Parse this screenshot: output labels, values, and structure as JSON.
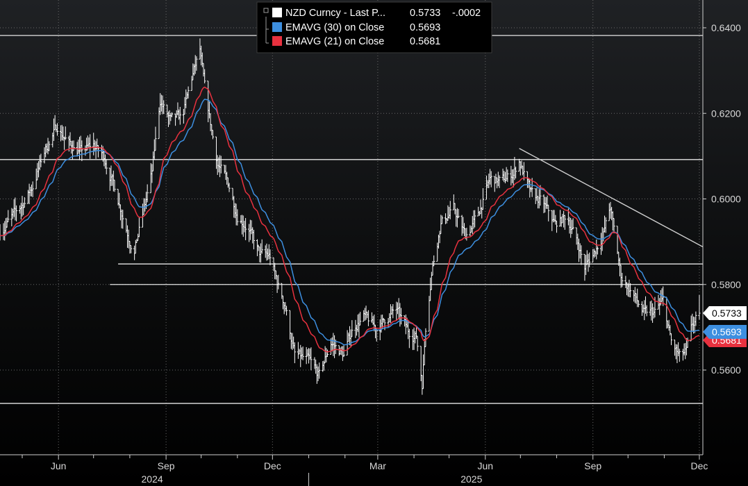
{
  "chart_data": {
    "type": "line",
    "instrument": "NZD Curncy",
    "ylim": [
      0.548,
      0.6408
    ],
    "y_ticks": [
      0.56,
      0.58,
      0.6,
      0.62,
      0.64
    ],
    "y_tick_labels": [
      "0.5600",
      "0.5800",
      "0.6000",
      "0.6200",
      "0.6400"
    ],
    "x_domain": [
      "2024-04-12",
      "2025-12-04"
    ],
    "x_month_ticks": [
      {
        "date": "2024-06-01",
        "label": "Jun"
      },
      {
        "date": "2024-09-01",
        "label": "Sep"
      },
      {
        "date": "2024-12-01",
        "label": "Dec"
      },
      {
        "date": "2025-03-01",
        "label": "Mar"
      },
      {
        "date": "2025-06-01",
        "label": "Jun"
      },
      {
        "date": "2025-09-01",
        "label": "Sep"
      },
      {
        "date": "2025-12-01",
        "label": "Dec"
      }
    ],
    "x_minor_ticks": [
      "2024-04-01",
      "2024-05-01",
      "2024-07-01",
      "2024-08-01",
      "2024-10-01",
      "2024-11-01",
      "2025-01-01",
      "2025-02-01",
      "2025-04-01",
      "2025-05-01",
      "2025-07-01",
      "2025-08-01",
      "2025-10-01",
      "2025-11-01"
    ],
    "x_year_labels": [
      {
        "center": "2024-09-01",
        "label": "2024"
      },
      {
        "center": "2025-06-01",
        "label": "2025"
      }
    ],
    "x_year_separator": "2025-01-01",
    "legend": {
      "placement": "top-center",
      "entries": [
        {
          "label": "NZD Curncy - Last P...",
          "value": "0.5733",
          "change": "-.0002",
          "color": "#ffffff"
        },
        {
          "label": "EMAVG (30)  on Close",
          "value": "0.5693",
          "color": "#3d8fe0"
        },
        {
          "label": "EMAVG (21)  on Close",
          "value": "0.5681",
          "color": "#e8313f"
        }
      ]
    },
    "last_value_tags": [
      {
        "value": 0.5733,
        "label": "0.5733",
        "bg": "#ffffff",
        "fg": "#000000"
      },
      {
        "value": 0.5693,
        "label": "0.5693",
        "bg": "#3d8fe0",
        "fg": "#ffffff"
      },
      {
        "value": 0.5681,
        "label": "0.5681",
        "bg": "#e8313f",
        "fg": "#ffffff"
      }
    ],
    "horizontal_levels": [
      {
        "value": 0.6382,
        "from": "2024-04-12"
      },
      {
        "value": 0.6092,
        "from": "2024-04-12"
      },
      {
        "value": 0.5848,
        "from": "2024-07-22"
      },
      {
        "value": 0.58,
        "from": "2024-07-15"
      },
      {
        "value": 0.5522,
        "from": "2024-04-12"
      }
    ],
    "trendline": {
      "from": [
        "2025-06-30",
        0.6118
      ],
      "to": [
        "2025-12-04",
        0.5888
      ],
      "color": "#d0d0d0"
    },
    "series": [
      {
        "name": "NZD Curncy - Last Price",
        "kind": "ohlc",
        "color": "#ffffff",
        "anchors": [
          [
            "2024-04-12",
            0.5925
          ],
          [
            "2024-04-22",
            0.5955
          ],
          [
            "2024-05-01",
            0.5985
          ],
          [
            "2024-05-10",
            0.603
          ],
          [
            "2024-05-20",
            0.611
          ],
          [
            "2024-05-31",
            0.617
          ],
          [
            "2024-06-10",
            0.613
          ],
          [
            "2024-06-20",
            0.611
          ],
          [
            "2024-07-01",
            0.6125
          ],
          [
            "2024-07-10",
            0.61
          ],
          [
            "2024-07-20",
            0.602
          ],
          [
            "2024-07-31",
            0.5915
          ],
          [
            "2024-08-05",
            0.588
          ],
          [
            "2024-08-12",
            0.596
          ],
          [
            "2024-08-20",
            0.606
          ],
          [
            "2024-08-27",
            0.623
          ],
          [
            "2024-09-05",
            0.618
          ],
          [
            "2024-09-15",
            0.619
          ],
          [
            "2024-09-24",
            0.629
          ],
          [
            "2024-09-30",
            0.6345
          ],
          [
            "2024-10-05",
            0.6235
          ],
          [
            "2024-10-15",
            0.6085
          ],
          [
            "2024-10-25",
            0.603
          ],
          [
            "2024-11-01",
            0.5965
          ],
          [
            "2024-11-10",
            0.5935
          ],
          [
            "2024-11-20",
            0.587
          ],
          [
            "2024-11-29",
            0.5865
          ],
          [
            "2024-12-05",
            0.5805
          ],
          [
            "2024-12-12",
            0.575
          ],
          [
            "2024-12-20",
            0.5635
          ],
          [
            "2025-01-01",
            0.562
          ],
          [
            "2025-01-10",
            0.5585
          ],
          [
            "2025-01-20",
            0.5665
          ],
          [
            "2025-01-31",
            0.5635
          ],
          [
            "2025-02-08",
            0.57
          ],
          [
            "2025-02-17",
            0.5725
          ],
          [
            "2025-02-28",
            0.5695
          ],
          [
            "2025-03-08",
            0.572
          ],
          [
            "2025-03-17",
            0.574
          ],
          [
            "2025-03-27",
            0.569
          ],
          [
            "2025-04-03",
            0.568
          ],
          [
            "2025-04-08",
            0.557
          ],
          [
            "2025-04-11",
            0.57
          ],
          [
            "2025-04-16",
            0.583
          ],
          [
            "2025-04-24",
            0.5945
          ],
          [
            "2025-05-05",
            0.5975
          ],
          [
            "2025-05-15",
            0.5915
          ],
          [
            "2025-05-25",
            0.5955
          ],
          [
            "2025-06-05",
            0.6045
          ],
          [
            "2025-06-15",
            0.604
          ],
          [
            "2025-06-25",
            0.606
          ],
          [
            "2025-06-30",
            0.609
          ],
          [
            "2025-07-10",
            0.601
          ],
          [
            "2025-07-20",
            0.599
          ],
          [
            "2025-07-31",
            0.594
          ],
          [
            "2025-08-10",
            0.596
          ],
          [
            "2025-08-20",
            0.589
          ],
          [
            "2025-08-25",
            0.584
          ],
          [
            "2025-09-01",
            0.587
          ],
          [
            "2025-09-10",
            0.592
          ],
          [
            "2025-09-16",
            0.598
          ],
          [
            "2025-09-25",
            0.582
          ],
          [
            "2025-10-05",
            0.578
          ],
          [
            "2025-10-15",
            0.573
          ],
          [
            "2025-10-24",
            0.5735
          ],
          [
            "2025-10-31",
            0.576
          ],
          [
            "2025-11-07",
            0.5665
          ],
          [
            "2025-11-14",
            0.563
          ],
          [
            "2025-11-20",
            0.564
          ],
          [
            "2025-11-25",
            0.57
          ],
          [
            "2025-12-01",
            0.5733
          ]
        ]
      },
      {
        "name": "EMAVG (30) on Close",
        "kind": "ema",
        "period": 30,
        "color": "#3d8fe0",
        "last": 0.5693
      },
      {
        "name": "EMAVG (21) on Close",
        "kind": "ema",
        "period": 21,
        "color": "#e8313f",
        "last": 0.5681
      }
    ]
  }
}
